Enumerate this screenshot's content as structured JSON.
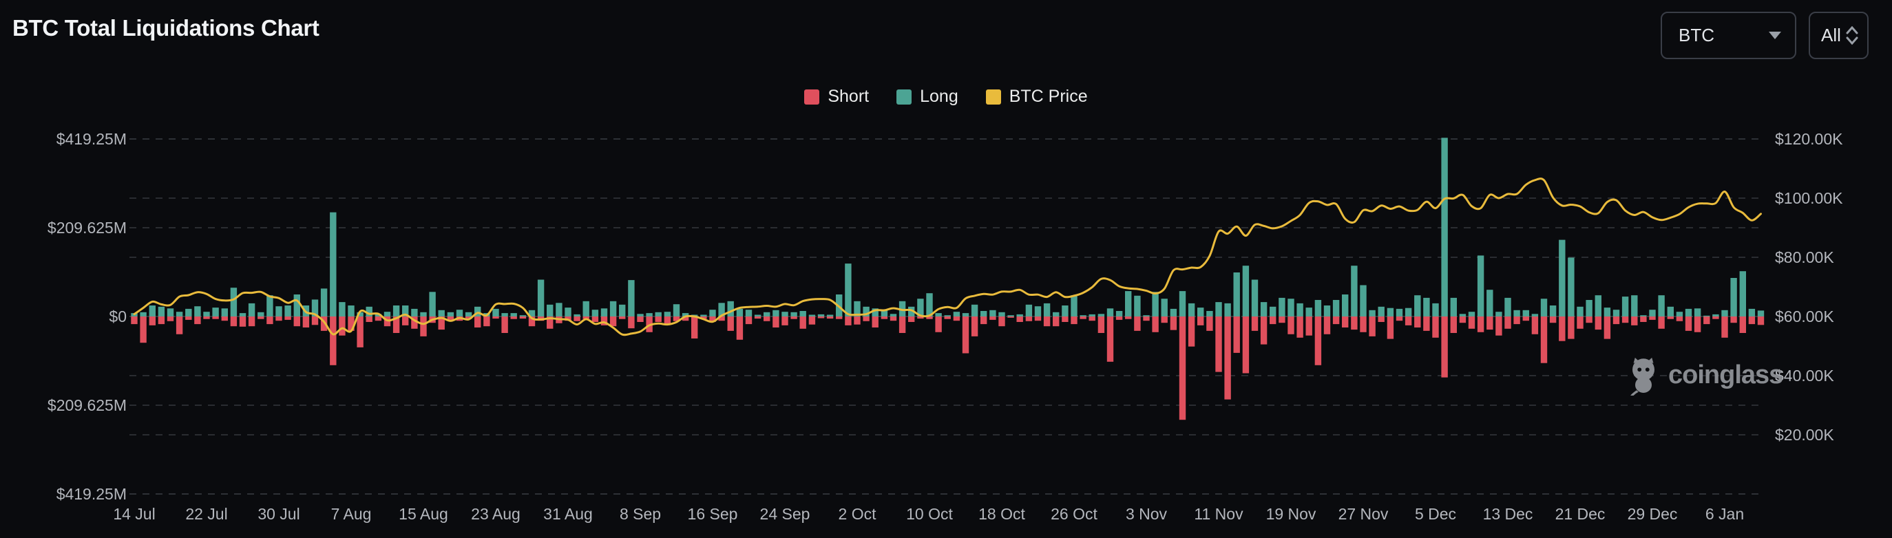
{
  "header": {
    "title": "BTC Total Liquidations Chart",
    "symbol_select": {
      "value": "BTC",
      "icon": "caret-down-icon"
    },
    "range_select": {
      "value": "All",
      "icon": "up-down-chevrons-icon"
    }
  },
  "watermark": {
    "text": "coinglass",
    "icon": "coinglass-mascot-icon",
    "color": "#8f9297"
  },
  "colors": {
    "background": "#0a0b0e",
    "grid": "#34373d",
    "axis_text": "#b4b7bd",
    "short": "#e0505d",
    "long": "#4ca494",
    "price": "#e9bb3c"
  },
  "chart_data": {
    "type": "bar+line",
    "title": "BTC Total Liquidations Chart",
    "grid": "dashed horizontal",
    "legend_position": "top-center",
    "x_labels": [
      "14 Jul",
      "22 Jul",
      "30 Jul",
      "7 Aug",
      "15 Aug",
      "23 Aug",
      "31 Aug",
      "8 Sep",
      "16 Sep",
      "24 Sep",
      "2 Oct",
      "10 Oct",
      "18 Oct",
      "26 Oct",
      "3 Nov",
      "11 Nov",
      "19 Nov",
      "27 Nov",
      "5 Dec",
      "13 Dec",
      "21 Dec",
      "29 Dec",
      "6 Jan"
    ],
    "x_tick_interval_days": 8,
    "left_axis": {
      "labels": [
        "$419.25M",
        "$209.625M",
        "$0",
        "$209.625M",
        "$419.25M"
      ],
      "max": 419.25,
      "min": -419.25,
      "unit": "M USD"
    },
    "right_axis": {
      "labels": [
        "$120.00K",
        "$100.00K",
        "$80.00K",
        "$60.00K",
        "$40.00K",
        "$20.00K"
      ],
      "max": 120,
      "min": 0,
      "unit": "K USD"
    },
    "series": [
      {
        "name": "Short",
        "type": "bar",
        "direction": "down",
        "axis": "left",
        "color": "#e0505d",
        "unit": "$M",
        "values": [
          18,
          62,
          21,
          18,
          11,
          42,
          8,
          18,
          6,
          6,
          10,
          23,
          24,
          23,
          6,
          18,
          10,
          8,
          23,
          26,
          20,
          34,
          115,
          45,
          34,
          73,
          13,
          10,
          23,
          39,
          21,
          29,
          47,
          15,
          31,
          8,
          10,
          6,
          26,
          23,
          5,
          39,
          6,
          5,
          23,
          10,
          29,
          16,
          10,
          11,
          6,
          13,
          21,
          23,
          6,
          28,
          13,
          37,
          13,
          18,
          11,
          10,
          52,
          6,
          13,
          10,
          34,
          55,
          18,
          5,
          11,
          26,
          21,
          6,
          29,
          19,
          4,
          5,
          6,
          21,
          19,
          11,
          26,
          6,
          10,
          39,
          13,
          5,
          6,
          37,
          6,
          10,
          87,
          47,
          18,
          8,
          23,
          3,
          13,
          11,
          10,
          23,
          23,
          13,
          18,
          6,
          10,
          39,
          107,
          8,
          6,
          34,
          10,
          37,
          15,
          32,
          244,
          71,
          21,
          34,
          131,
          196,
          86,
          134,
          34,
          66,
          18,
          15,
          42,
          50,
          45,
          115,
          42,
          18,
          26,
          31,
          37,
          47,
          13,
          53,
          10,
          21,
          26,
          34,
          50,
          144,
          39,
          15,
          29,
          37,
          31,
          45,
          29,
          18,
          10,
          42,
          110,
          15,
          58,
          53,
          29,
          15,
          31,
          53,
          18,
          15,
          21,
          13,
          8,
          29,
          6,
          11,
          34,
          37,
          18,
          6,
          50,
          15,
          39,
          18,
          20
        ]
      },
      {
        "name": "Long",
        "type": "bar",
        "direction": "up",
        "axis": "left",
        "color": "#4ca494",
        "unit": "$M",
        "values": [
          8,
          10,
          26,
          23,
          19,
          11,
          18,
          24,
          11,
          21,
          19,
          68,
          8,
          31,
          10,
          50,
          24,
          26,
          52,
          26,
          40,
          66,
          246,
          34,
          26,
          10,
          23,
          6,
          11,
          26,
          26,
          18,
          10,
          58,
          15,
          10,
          16,
          10,
          23,
          8,
          18,
          8,
          8,
          3,
          15,
          87,
          28,
          32,
          21,
          5,
          36,
          16,
          19,
          36,
          28,
          86,
          6,
          8,
          10,
          11,
          29,
          8,
          4,
          4,
          16,
          32,
          36,
          18,
          16,
          4,
          10,
          15,
          11,
          10,
          13,
          4,
          5,
          4,
          52,
          125,
          36,
          23,
          19,
          15,
          6,
          36,
          23,
          42,
          55,
          8,
          3,
          11,
          8,
          28,
          13,
          15,
          10,
          3,
          5,
          28,
          24,
          31,
          10,
          26,
          50,
          3,
          5,
          6,
          19,
          13,
          60,
          49,
          3,
          58,
          42,
          18,
          60,
          31,
          21,
          13,
          34,
          31,
          104,
          120,
          87,
          34,
          23,
          44,
          42,
          31,
          21,
          39,
          26,
          39,
          52,
          120,
          74,
          15,
          23,
          20,
          18,
          20,
          50,
          44,
          31,
          422,
          44,
          6,
          11,
          144,
          63,
          11,
          44,
          15,
          15,
          6,
          42,
          26,
          181,
          139,
          23,
          39,
          50,
          21,
          16,
          47,
          50,
          3,
          16,
          50,
          23,
          11,
          18,
          19,
          2,
          5,
          15,
          91,
          107,
          18,
          14
        ]
      },
      {
        "name": "BTC Price",
        "type": "line",
        "axis": "right",
        "color": "#e9bb3c",
        "unit": "$K",
        "values": [
          60.8,
          62.9,
          65.0,
          64.1,
          63.9,
          66.7,
          67.2,
          68.2,
          67.6,
          65.9,
          65.4,
          65.8,
          67.9,
          68.0,
          68.3,
          66.8,
          66.2,
          64.6,
          65.4,
          61.5,
          60.7,
          58.2,
          54.0,
          56.0,
          55.1,
          61.7,
          60.9,
          60.9,
          58.7,
          59.4,
          60.6,
          58.7,
          57.5,
          58.9,
          59.5,
          58.5,
          59.5,
          59.0,
          61.2,
          60.4,
          64.1,
          64.2,
          64.3,
          62.9,
          59.4,
          59.0,
          59.4,
          59.1,
          58.9,
          57.3,
          59.1,
          57.5,
          58.0,
          56.2,
          53.9,
          54.2,
          54.9,
          57.0,
          57.6,
          57.3,
          58.1,
          60.0,
          60.0,
          59.1,
          58.2,
          60.3,
          61.7,
          62.9,
          63.2,
          63.3,
          63.6,
          63.3,
          64.2,
          63.8,
          65.2,
          65.8,
          65.9,
          65.6,
          63.3,
          60.8,
          60.6,
          60.8,
          62.1,
          62.1,
          62.8,
          62.2,
          62.1,
          60.3,
          60.3,
          62.5,
          63.2,
          62.9,
          66.1,
          67.0,
          67.6,
          67.4,
          68.4,
          68.4,
          69.0,
          67.4,
          67.4,
          66.6,
          68.2,
          66.6,
          67.0,
          68.0,
          69.9,
          72.7,
          72.3,
          70.2,
          69.5,
          69.3,
          68.7,
          67.8,
          69.4,
          75.6,
          75.9,
          76.5,
          76.7,
          80.5,
          88.7,
          88.0,
          90.4,
          87.3,
          91.0,
          90.6,
          89.8,
          90.5,
          92.3,
          94.3,
          98.4,
          98.9,
          97.7,
          98.0,
          93.0,
          91.9,
          95.9,
          95.6,
          97.5,
          96.4,
          97.2,
          95.8,
          96.0,
          98.8,
          96.6,
          99.8,
          99.9,
          101.1,
          97.3,
          96.6,
          101.1,
          100.0,
          101.4,
          101.4,
          104.5,
          106.1,
          106.1,
          100.2,
          97.5,
          97.8,
          97.2,
          95.2,
          94.9,
          98.7,
          99.3,
          95.8,
          94.3,
          95.3,
          93.5,
          92.6,
          93.4,
          94.6,
          96.9,
          98.1,
          98.2,
          98.3,
          102.2,
          96.9,
          95.0,
          92.5,
          94.7
        ]
      }
    ]
  }
}
